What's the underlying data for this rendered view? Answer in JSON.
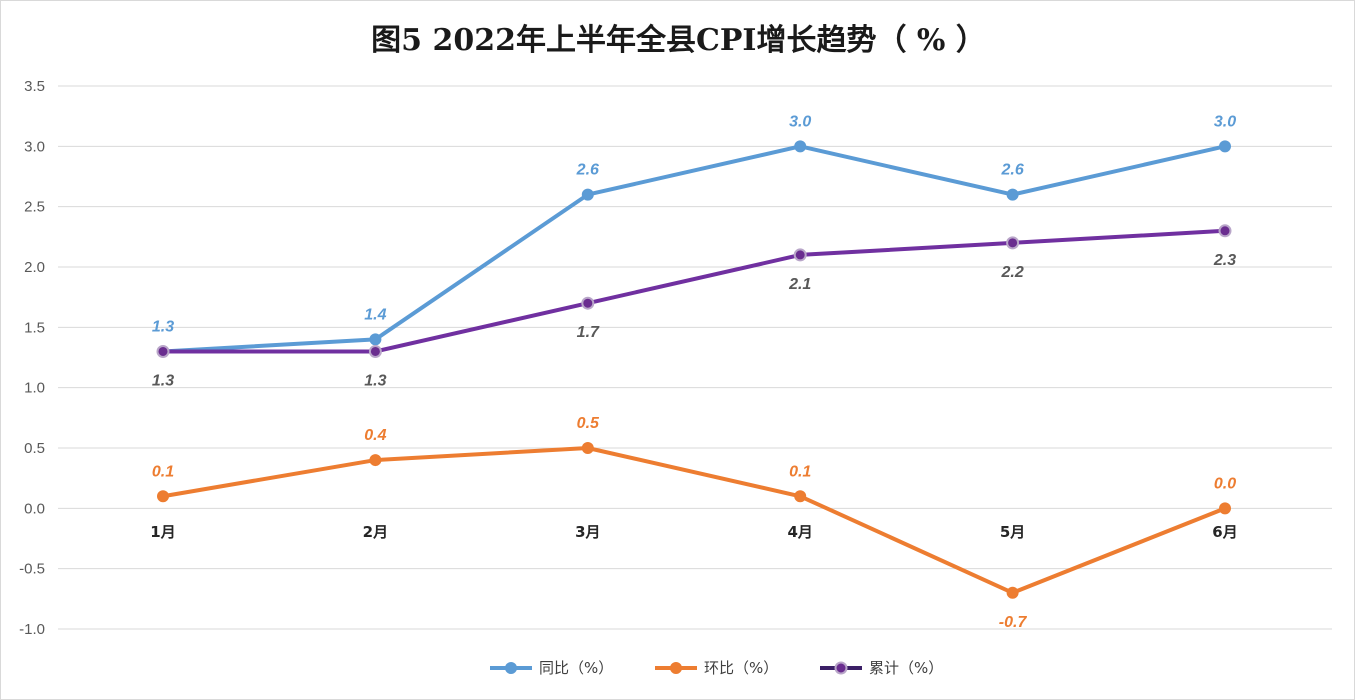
{
  "chart_data": {
    "type": "line",
    "title": "图5  2022年上半年全县CPI增长趋势（ % ）",
    "categories": [
      "1月",
      "2月",
      "3月",
      "4月",
      "5月",
      "6月"
    ],
    "ylim": [
      -1.0,
      3.5
    ],
    "yticks": [
      "3.5",
      "3.0",
      "2.5",
      "2.0",
      "1.5",
      "1.0",
      "0.5",
      "0.0",
      "-0.5",
      "-1.0"
    ],
    "grid": true,
    "legend_position": "bottom",
    "series": [
      {
        "name": "同比（%）",
        "color": "#5b9bd5",
        "values": [
          1.3,
          1.4,
          2.6,
          3.0,
          2.6,
          3.0
        ],
        "labels": [
          "1.3",
          "1.4",
          "2.6",
          "3.0",
          "2.6",
          "3.0"
        ]
      },
      {
        "name": "环比（%）",
        "color": "#ed7d31",
        "values": [
          0.1,
          0.4,
          0.5,
          0.1,
          -0.7,
          0.0
        ],
        "labels": [
          "0.1",
          "0.4",
          "0.5",
          "0.1",
          "-0.7",
          "0.0"
        ]
      },
      {
        "name": "累计（%）",
        "color": "#7030a0",
        "label_color": "#595959",
        "values": [
          1.3,
          1.3,
          1.7,
          2.1,
          2.2,
          2.3
        ],
        "labels": [
          "1.3",
          "1.3",
          "1.7",
          "2.1",
          "2.2",
          "2.3"
        ]
      }
    ]
  }
}
